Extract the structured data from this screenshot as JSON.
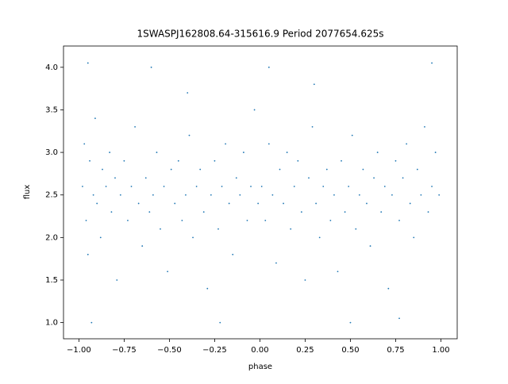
{
  "chart_data": {
    "type": "scatter",
    "title": "1SWASPJ162808.64-315616.9 Period 2077654.625s",
    "x_label": "phase",
    "y_label": "flux",
    "color": "#1f77b4",
    "xlim": [
      -1.085,
      1.09
    ],
    "ylim": [
      0.81,
      4.25
    ],
    "xticks": [
      {
        "value": -1,
        "label": "−1.00"
      },
      {
        "value": -0.75,
        "label": "−0.75"
      },
      {
        "value": -0.5,
        "label": "−0.50"
      },
      {
        "value": -0.25,
        "label": "−0.25"
      },
      {
        "value": 0,
        "label": "0.00"
      },
      {
        "value": 0.25,
        "label": "0.25"
      },
      {
        "value": 0.5,
        "label": "0.50"
      },
      {
        "value": 0.75,
        "label": "0.75"
      },
      {
        "value": 1,
        "label": "1.00"
      }
    ],
    "yticks": [
      {
        "value": 1,
        "label": "1.0"
      },
      {
        "value": 1.5,
        "label": "1.5"
      },
      {
        "value": 2,
        "label": "2.0"
      },
      {
        "value": 2.5,
        "label": "2.5"
      },
      {
        "value": 3,
        "label": "3.0"
      },
      {
        "value": 3.5,
        "label": "3.5"
      },
      {
        "value": 4,
        "label": "4.0"
      }
    ],
    "x": [
      -0.98,
      -0.97,
      -0.96,
      -0.95,
      -0.94,
      -0.92,
      -0.91,
      -0.9,
      -0.88,
      -0.87,
      -0.85,
      -0.83,
      -0.82,
      -0.8,
      -0.79,
      -0.77,
      -0.75,
      -0.73,
      -0.71,
      -0.69,
      -0.67,
      -0.65,
      -0.63,
      -0.61,
      -0.59,
      -0.57,
      -0.55,
      -0.53,
      -0.51,
      -0.49,
      -0.47,
      -0.45,
      -0.43,
      -0.41,
      -0.39,
      -0.37,
      -0.35,
      -0.33,
      -0.31,
      -0.29,
      -0.27,
      -0.25,
      -0.23,
      -0.21,
      -0.19,
      -0.17,
      -0.15,
      -0.13,
      -0.11,
      -0.09,
      -0.07,
      -0.05,
      -0.03,
      -0.01,
      0.01,
      0.03,
      0.05,
      0.07,
      0.09,
      0.11,
      0.13,
      0.15,
      0.17,
      0.19,
      0.21,
      0.23,
      0.25,
      0.27,
      0.29,
      0.31,
      0.33,
      0.35,
      0.37,
      0.39,
      0.41,
      0.43,
      0.45,
      0.47,
      0.49,
      0.51,
      0.53,
      0.55,
      0.57,
      0.59,
      0.61,
      0.63,
      0.65,
      0.67,
      0.69,
      0.71,
      0.73,
      0.75,
      0.77,
      0.79,
      0.81,
      0.83,
      0.85,
      0.87,
      0.89,
      0.91,
      0.93,
      0.95,
      0.97,
      0.99,
      -0.95,
      -0.6,
      0.05,
      0.95,
      -0.22,
      0.5,
      -0.93,
      0.77,
      -0.4,
      0.3
    ],
    "y": [
      2.6,
      3.1,
      2.2,
      1.8,
      2.9,
      2.5,
      3.4,
      2.4,
      2.0,
      2.8,
      2.6,
      3.0,
      2.3,
      2.7,
      1.5,
      2.5,
      2.9,
      2.2,
      2.6,
      3.3,
      2.4,
      1.9,
      2.7,
      2.3,
      2.5,
      3.0,
      2.1,
      2.6,
      1.6,
      2.8,
      2.4,
      2.9,
      2.2,
      2.5,
      3.2,
      2.0,
      2.6,
      2.8,
      2.3,
      1.4,
      2.5,
      2.9,
      2.1,
      2.6,
      3.1,
      2.4,
      1.8,
      2.7,
      2.5,
      3.0,
      2.2,
      2.6,
      3.5,
      2.4,
      2.6,
      2.2,
      3.1,
      2.5,
      1.7,
      2.8,
      2.4,
      3.0,
      2.1,
      2.6,
      2.9,
      2.3,
      1.5,
      2.7,
      3.3,
      2.4,
      2.0,
      2.6,
      2.8,
      2.2,
      2.5,
      1.6,
      2.9,
      2.3,
      2.6,
      3.2,
      2.1,
      2.5,
      2.8,
      2.4,
      1.9,
      2.7,
      3.0,
      2.3,
      2.6,
      1.4,
      2.5,
      2.9,
      2.2,
      2.7,
      3.1,
      2.4,
      2.0,
      2.8,
      2.5,
      3.3,
      2.3,
      2.6,
      3.0,
      2.5,
      4.05,
      4.0,
      4.0,
      4.05,
      1.0,
      1.0,
      1.0,
      1.05,
      3.7,
      3.8
    ]
  }
}
